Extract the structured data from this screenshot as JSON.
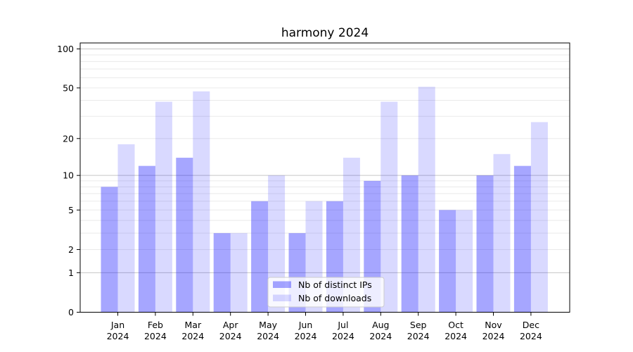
{
  "chart_data": {
    "type": "bar",
    "title": "harmony 2024",
    "categories": [
      "Jan 2024",
      "Feb 2024",
      "Mar 2024",
      "Apr 2024",
      "May 2024",
      "Jun 2024",
      "Jul 2024",
      "Aug 2024",
      "Sep 2024",
      "Oct 2024",
      "Nov 2024",
      "Dec 2024"
    ],
    "category_top_lines": [
      "Jan",
      "Feb",
      "Mar",
      "Apr",
      "May",
      "Jun",
      "Jul",
      "Aug",
      "Sep",
      "Oct",
      "Nov",
      "Dec"
    ],
    "category_bottom_line": "2024",
    "series": [
      {
        "name": "Nb of distinct IPs",
        "color": "#0000ff",
        "alpha": 0.35,
        "values": [
          8,
          12,
          14,
          3,
          6,
          3,
          6,
          9,
          10,
          5,
          10,
          12
        ]
      },
      {
        "name": "Nb of downloads",
        "color": "#0000ff",
        "alpha": 0.15,
        "values": [
          18,
          39,
          47,
          3,
          10,
          6,
          14,
          39,
          51,
          5,
          15,
          27
        ]
      }
    ],
    "xlabel": "",
    "ylabel": "",
    "yscale": "log1p",
    "ylim": [
      0,
      117
    ],
    "yticks": [
      0,
      1,
      2,
      5,
      10,
      20,
      50,
      100
    ],
    "major_grid_values": [
      1,
      10,
      100
    ],
    "minor_grid_values": [
      2,
      3,
      4,
      5,
      6,
      7,
      8,
      9,
      20,
      30,
      40,
      50,
      60,
      70,
      80,
      90
    ],
    "grid": true,
    "legend": {
      "position": "lower center",
      "labels": [
        "Nb of distinct IPs",
        "Nb of downloads"
      ]
    }
  },
  "colors": {
    "bar_base": "#0000ff",
    "bar_dark_on_white": "#a6a6ff",
    "bar_light_on_white": "#d9d9ff",
    "grid_major": "#c6c6c6",
    "grid_minor": "#eaeaea",
    "frame": "#000000",
    "text": "#000000",
    "legend_border": "#cccccc",
    "legend_background": "#ffffff"
  }
}
